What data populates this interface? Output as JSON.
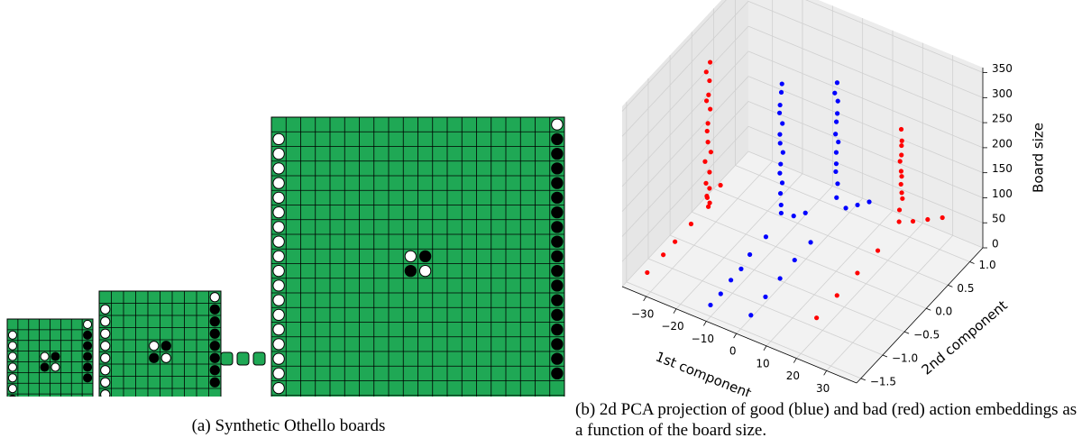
{
  "figure_a": {
    "boards": [
      {
        "size": 8
      },
      {
        "size": 10
      },
      {
        "size": 20
      }
    ],
    "caption": "(a) Synthetic Othello boards"
  },
  "chart_data": {
    "type": "scatter3d",
    "xlabel": "1st component",
    "ylabel": "2nd component",
    "zlabel": "Board size",
    "xlim": [
      -38,
      40
    ],
    "ylim": [
      -1.6,
      1.3
    ],
    "zlim": [
      0,
      360
    ],
    "xticks": [
      {
        "value": -30,
        "label": "−30"
      },
      {
        "value": -20,
        "label": "−20"
      },
      {
        "value": -10,
        "label": "−10"
      },
      0,
      10,
      20,
      30
    ],
    "yticks": [
      {
        "value": -1.5,
        "label": "−1.5"
      },
      {
        "value": -1.0,
        "label": "−1.0"
      },
      {
        "value": -0.5,
        "label": "−0.5"
      },
      {
        "value": 0,
        "label": "0.0"
      },
      0.5,
      {
        "value": 1.0,
        "label": "1.0"
      }
    ],
    "zticks": [
      0,
      50,
      100,
      150,
      200,
      250,
      300,
      350
    ],
    "series": [
      {
        "color": "#ff0000",
        "x": [
          -29,
          -30,
          -29.5,
          -28.8,
          -30.2,
          -29.7,
          -29.3,
          -30,
          -29.6,
          -28.9,
          -30.4,
          -29.2,
          -29.8,
          -29.5,
          -30.1,
          -29,
          -29.6,
          -28.5,
          -27,
          -31,
          -32,
          -33,
          -34
        ],
        "y": [
          -0.2,
          -0.22,
          -0.18,
          -0.25,
          -0.2,
          -0.15,
          -0.23,
          -0.2,
          -0.21,
          -0.19,
          -0.22,
          -0.2,
          -0.24,
          -0.18,
          -0.2,
          -0.21,
          -0.2,
          -0.3,
          -0.1,
          -0.5,
          -0.8,
          -1.0,
          -1.3
        ],
        "z": [
          340,
          320,
          300,
          280,
          260,
          240,
          220,
          200,
          180,
          160,
          140,
          120,
          100,
          85,
          70,
          60,
          50,
          80,
          90,
          40,
          30,
          20,
          10
        ]
      },
      {
        "color": "#0000ff",
        "x": [
          -8,
          -8.5,
          -8.2,
          -8.8,
          -8,
          -8.4,
          -8.6,
          -8.1,
          -8.3,
          -8.7,
          -8.2,
          -8.5,
          -8,
          -8.4,
          -7,
          -6,
          -9,
          -10,
          -10,
          -10.5,
          -11,
          -11.5
        ],
        "y": [
          0,
          0.02,
          -0.03,
          0,
          0.01,
          -0.02,
          0,
          0.03,
          -0.01,
          0,
          0.02,
          0,
          -0.02,
          0.01,
          0.2,
          0.4,
          -0.3,
          -0.6,
          -0.8,
          -1.0,
          -1.2,
          -1.4
        ],
        "z": [
          330,
          310,
          290,
          270,
          250,
          230,
          210,
          190,
          170,
          150,
          130,
          110,
          90,
          70,
          50,
          40,
          50,
          40,
          30,
          25,
          15,
          10
        ]
      },
      {
        "color": "#0000ff",
        "x": [
          5,
          4.5,
          4.8,
          5.2,
          4.6,
          4.9,
          5.1,
          4.7,
          5,
          4.4,
          5.3,
          4.8,
          6,
          7,
          8,
          3,
          2,
          1.5,
          1,
          0.5
        ],
        "y": [
          0.37,
          0.35,
          0.4,
          0.36,
          0.38,
          0.34,
          0.39,
          0.37,
          0.35,
          0.38,
          0.36,
          0.37,
          0.5,
          0.7,
          0.9,
          -0.1,
          -0.4,
          -0.7,
          -1.0,
          -1.3
        ],
        "z": [
          330,
          310,
          290,
          270,
          250,
          230,
          210,
          190,
          170,
          150,
          130,
          100,
          70,
          60,
          50,
          50,
          40,
          30,
          20,
          10
        ]
      },
      {
        "color": "#ff0000",
        "x": [
          23,
          23.5,
          22.8,
          23.2,
          22.6,
          23.4,
          23,
          22.9,
          23.3,
          23.1,
          22.7,
          23,
          24,
          26,
          28,
          21,
          20,
          19,
          18
        ],
        "y": [
          0.6,
          0.58,
          0.62,
          0.59,
          0.6,
          0.57,
          0.61,
          0.6,
          0.59,
          0.62,
          0.58,
          0.55,
          0.8,
          1.0,
          1.2,
          0.2,
          -0.2,
          -0.6,
          -1.0
        ],
        "z": [
          260,
          240,
          225,
          210,
          195,
          180,
          165,
          150,
          135,
          120,
          100,
          80,
          60,
          50,
          40,
          50,
          40,
          30,
          20
        ]
      }
    ],
    "caption": "(b) 2d PCA projection of good (blue) and bad (red) action embeddings as a function of the board size."
  }
}
